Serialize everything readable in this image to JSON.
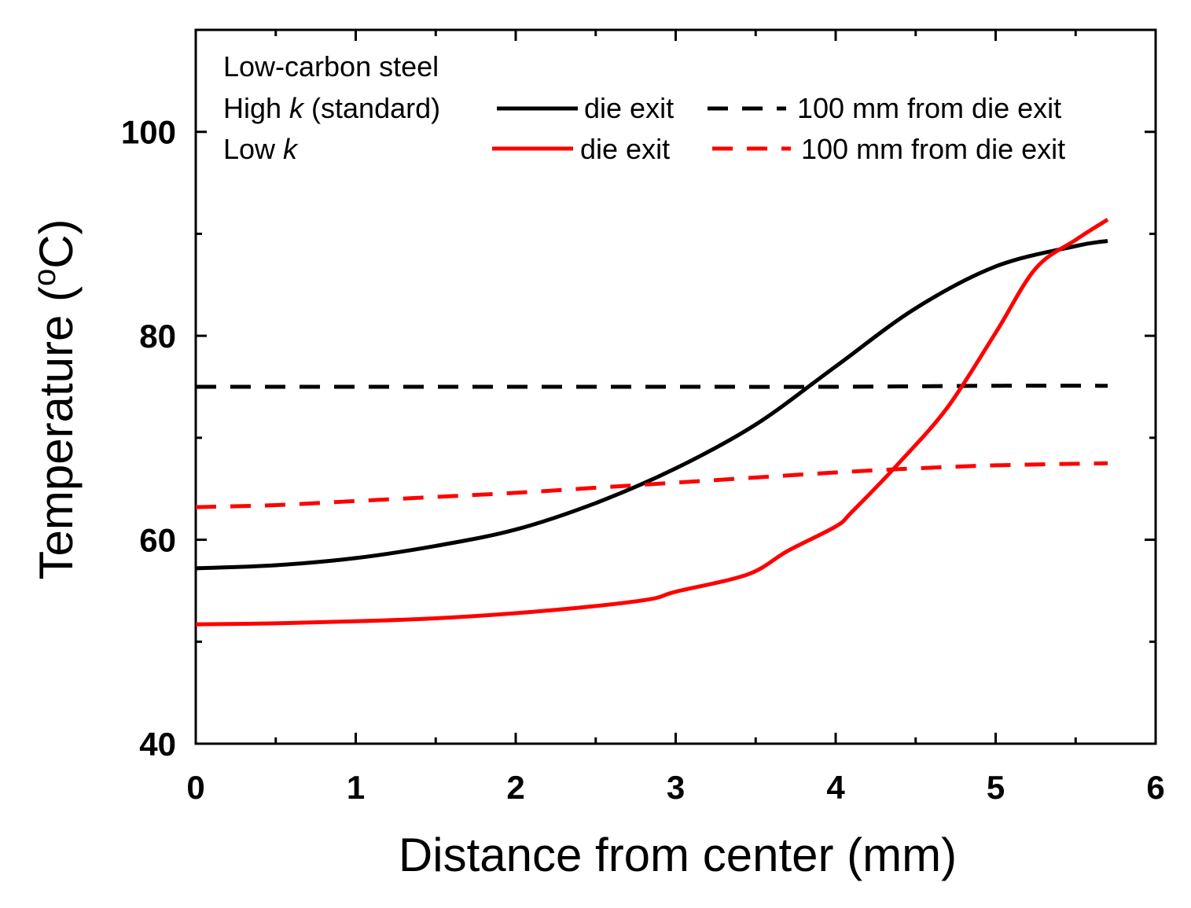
{
  "chart_data": {
    "type": "line",
    "xlabel": "Distance from center (mm)",
    "ylabel_main": "Temperature (",
    "ylabel_sup": "o",
    "ylabel_end": "C)",
    "xlim": [
      0,
      6
    ],
    "ylim": [
      40,
      110
    ],
    "x_ticks": [
      0,
      1,
      2,
      3,
      4,
      5,
      6
    ],
    "x_tick_labels": [
      "0",
      "1",
      "2",
      "3",
      "4",
      "5",
      "6"
    ],
    "y_ticks": [
      40,
      60,
      80,
      100
    ],
    "y_tick_labels": [
      "40",
      "60",
      "80",
      "100"
    ],
    "grid": false,
    "legend": {
      "title": "Low-carbon steel",
      "row1_label": "High ",
      "row1_k": "k",
      "row1_suffix": " (standard)",
      "row2_label": "Low ",
      "row2_k": "k",
      "die_exit": "die exit",
      "far": "100 mm from die exit"
    },
    "series": [
      {
        "name": "High k (standard) - die exit",
        "color": "#000000",
        "style": "solid",
        "x": [
          0,
          0.5,
          1.0,
          1.5,
          2.0,
          2.5,
          3.0,
          3.5,
          4.0,
          4.5,
          5.0,
          5.5,
          5.7
        ],
        "y": [
          57.2,
          57.5,
          58.2,
          59.4,
          61.0,
          63.6,
          67.0,
          71.3,
          77.0,
          82.7,
          86.8,
          88.8,
          89.3
        ]
      },
      {
        "name": "High k (standard) - 100 mm from die exit",
        "color": "#000000",
        "style": "dashed",
        "x": [
          0,
          1,
          2,
          3,
          4,
          5,
          5.7
        ],
        "y": [
          75.0,
          75.0,
          75.0,
          75.0,
          75.0,
          75.1,
          75.1
        ]
      },
      {
        "name": "Low k - die exit",
        "color": "#ff0000",
        "style": "solid",
        "x": [
          0,
          0.5,
          1.0,
          1.5,
          2.0,
          2.5,
          2.85,
          3.0,
          3.45,
          3.7,
          4.0,
          4.1,
          4.4,
          4.7,
          5.0,
          5.25,
          5.5,
          5.7
        ],
        "y": [
          51.7,
          51.8,
          52.0,
          52.3,
          52.8,
          53.5,
          54.2,
          54.9,
          56.6,
          58.9,
          61.3,
          62.7,
          67.6,
          73.0,
          80.3,
          86.6,
          89.4,
          91.4
        ]
      },
      {
        "name": "Low k - 100 mm from die exit",
        "color": "#ff0000",
        "style": "dashed",
        "x": [
          0,
          0.5,
          1.0,
          1.5,
          2.0,
          2.5,
          3.0,
          3.5,
          4.0,
          4.5,
          5.0,
          5.7
        ],
        "y": [
          63.2,
          63.4,
          63.8,
          64.2,
          64.6,
          65.1,
          65.6,
          66.1,
          66.6,
          67.0,
          67.3,
          67.5
        ]
      }
    ]
  }
}
